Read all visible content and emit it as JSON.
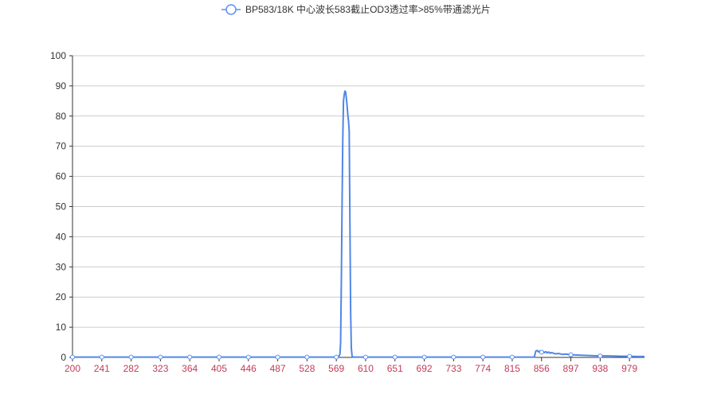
{
  "chart_data": {
    "type": "line",
    "title": "",
    "xlabel": "",
    "ylabel": "",
    "legend_position": "top-center",
    "grid": true,
    "xlim": [
      200,
      1000
    ],
    "ylim": [
      0,
      100
    ],
    "y_ticks": [
      "0",
      "10",
      "20",
      "30",
      "40",
      "50",
      "60",
      "70",
      "80",
      "90",
      "100"
    ],
    "x_ticks": [
      "200",
      "241",
      "282",
      "323",
      "364",
      "405",
      "446",
      "487",
      "528",
      "569",
      "610",
      "651",
      "692",
      "733",
      "774",
      "815",
      "856",
      "897",
      "938",
      "979"
    ],
    "colors": {
      "series": "#5b8ff9",
      "line": "#5087e6",
      "x_tick_text": "#c23b5a",
      "y_tick_text": "#333333",
      "grid": "#cccccc",
      "axis": "#333333"
    },
    "series": [
      {
        "name": "BP583/18K 中心波长583截止OD3透过率>85%带通滤光片",
        "points": [
          [
            200,
            0.1
          ],
          [
            241,
            0.1
          ],
          [
            282,
            0.1
          ],
          [
            323,
            0.1
          ],
          [
            364,
            0.1
          ],
          [
            405,
            0.1
          ],
          [
            446,
            0.1
          ],
          [
            487,
            0.1
          ],
          [
            528,
            0.1
          ],
          [
            569,
            0.1
          ],
          [
            572,
            0.1
          ],
          [
            574,
            1.0
          ],
          [
            575,
            5.0
          ],
          [
            576,
            25.0
          ],
          [
            577,
            50.0
          ],
          [
            578,
            72.0
          ],
          [
            579,
            85.0
          ],
          [
            580,
            87.0
          ],
          [
            581,
            88.3
          ],
          [
            582,
            88.0
          ],
          [
            583,
            86.0
          ],
          [
            584,
            83.5
          ],
          [
            585,
            80.5
          ],
          [
            586,
            78.5
          ],
          [
            587,
            75.0
          ],
          [
            588,
            45.0
          ],
          [
            589,
            15.0
          ],
          [
            590,
            3.0
          ],
          [
            591,
            0.5
          ],
          [
            592,
            0.1
          ],
          [
            610,
            0.1
          ],
          [
            651,
            0.1
          ],
          [
            692,
            0.1
          ],
          [
            733,
            0.1
          ],
          [
            774,
            0.1
          ],
          [
            815,
            0.1
          ],
          [
            846,
            0.1
          ],
          [
            847,
            1.2
          ],
          [
            848,
            2.1
          ],
          [
            850,
            2.3
          ],
          [
            852,
            1.8
          ],
          [
            854,
            2.2
          ],
          [
            856,
            1.7
          ],
          [
            858,
            2.0
          ],
          [
            860,
            1.6
          ],
          [
            862,
            1.9
          ],
          [
            864,
            1.5
          ],
          [
            866,
            1.8
          ],
          [
            868,
            1.4
          ],
          [
            870,
            1.6
          ],
          [
            875,
            1.2
          ],
          [
            880,
            1.3
          ],
          [
            885,
            1.0
          ],
          [
            890,
            1.1
          ],
          [
            897,
            0.9
          ],
          [
            905,
            0.8
          ],
          [
            915,
            0.7
          ],
          [
            925,
            0.6
          ],
          [
            938,
            0.5
          ],
          [
            950,
            0.5
          ],
          [
            965,
            0.4
          ],
          [
            979,
            0.35
          ],
          [
            990,
            0.3
          ],
          [
            1000,
            0.3
          ]
        ]
      }
    ]
  }
}
